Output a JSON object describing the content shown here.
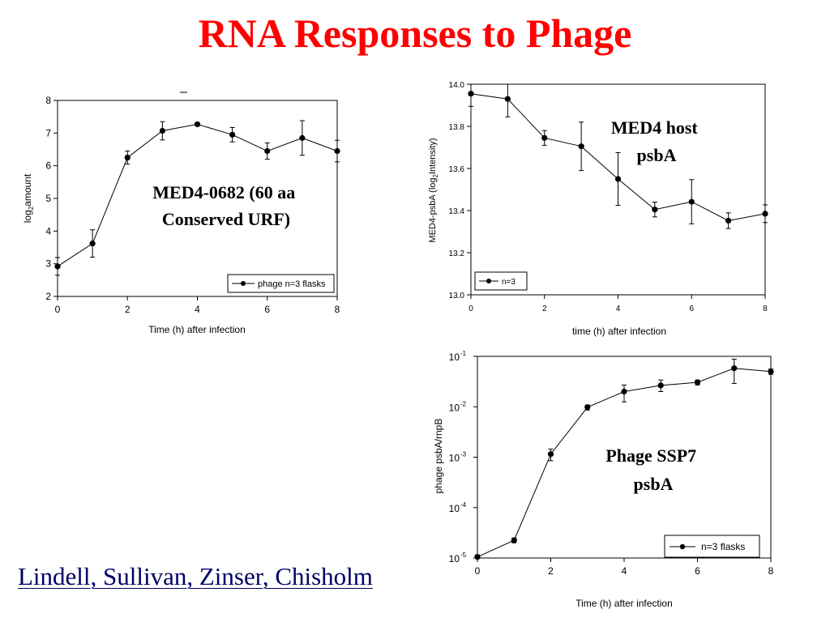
{
  "slide": {
    "title": "RNA Responses to Phage",
    "authors": "Lindell, Sullivan, Zinser, Chisholm"
  },
  "chart_data": [
    {
      "type": "line",
      "id": "c1",
      "annotation": [
        "MED4-0682 (60 aa",
        "Conserved URF)"
      ],
      "xlabel": "Time (h) after infection",
      "ylabel": "amount",
      "ylabel_prefix": "log",
      "ylabel_sub": "2",
      "xlim": [
        0,
        8
      ],
      "ylim": [
        2,
        8
      ],
      "xticks": [
        "0",
        "2",
        "4",
        "6",
        "8"
      ],
      "yticks": [
        "2",
        "3",
        "4",
        "5",
        "6",
        "7",
        "8"
      ],
      "legend": {
        "label": "phage n=3 flasks",
        "position": "bottom-right"
      },
      "series": [
        {
          "name": "phage n=3 flasks",
          "x": [
            0,
            1,
            2,
            3,
            4,
            5,
            6,
            7,
            8
          ],
          "y": [
            2.92,
            3.62,
            6.25,
            7.07,
            7.27,
            6.95,
            6.45,
            6.85,
            6.45
          ],
          "err": [
            0.27,
            0.42,
            0.2,
            0.28,
            0.05,
            0.22,
            0.25,
            0.53,
            0.33
          ]
        }
      ]
    },
    {
      "type": "line",
      "id": "c2",
      "annotation": [
        "MED4 host",
        "psbA"
      ],
      "xlabel": "time (h) after infection",
      "ylabel": "MED4-psbA (log2Intensity)",
      "ylabel_parts": [
        "MED4-psbA (log",
        "2",
        "Intensity)"
      ],
      "xlim": [
        0,
        8
      ],
      "ylim": [
        13.0,
        14.0
      ],
      "xticks": [
        "0",
        "2",
        "4",
        "6",
        "8"
      ],
      "yticks": [
        "13.0",
        "13.2",
        "13.4",
        "13.6",
        "13.8",
        "14.0"
      ],
      "legend": {
        "label": "n=3",
        "position": "bottom-left"
      },
      "series": [
        {
          "name": "n=3",
          "x": [
            0,
            1,
            2,
            3,
            4,
            5,
            6,
            7,
            8
          ],
          "y": [
            13.955,
            13.93,
            13.745,
            13.705,
            13.55,
            13.405,
            13.442,
            13.352,
            13.385
          ],
          "err": [
            0.06,
            0.085,
            0.035,
            0.115,
            0.125,
            0.035,
            0.105,
            0.037,
            0.042
          ]
        }
      ]
    },
    {
      "type": "line",
      "id": "c3",
      "annotation": [
        "Phage SSP7",
        "psbA"
      ],
      "xlabel": "Time (h) after infection",
      "ylabel": "phage psbA/rnpB",
      "xlim": [
        0,
        8
      ],
      "ylim": [
        1e-05,
        0.1
      ],
      "log_y": true,
      "xticks": [
        "0",
        "2",
        "4",
        "6",
        "8"
      ],
      "yticks": [
        {
          "base": "10",
          "exp": "-5"
        },
        {
          "base": "10",
          "exp": "-4"
        },
        {
          "base": "10",
          "exp": "-3"
        },
        {
          "base": "10",
          "exp": "-2"
        },
        {
          "base": "10",
          "exp": "-1"
        }
      ],
      "legend": {
        "label": "n=3 flasks",
        "position": "bottom-right"
      },
      "series": [
        {
          "name": "n=3 flasks",
          "x": [
            0,
            1,
            2,
            3,
            4,
            5,
            6,
            7,
            8
          ],
          "y": [
            1.05e-05,
            2.25e-05,
            0.00115,
            0.0098,
            0.02,
            0.0265,
            0.0305,
            0.058,
            0.05
          ],
          "lo": [
            9.5e-06,
            2e-05,
            0.00085,
            0.0086,
            0.0125,
            0.02,
            0.027,
            0.029,
            0.044
          ],
          "hi": [
            1.15e-05,
            2.5e-05,
            0.00145,
            0.0109,
            0.027,
            0.034,
            0.034,
            0.088,
            0.056
          ]
        }
      ]
    }
  ]
}
